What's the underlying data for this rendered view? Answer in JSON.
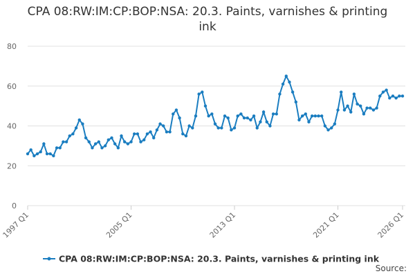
{
  "chart_data": {
    "type": "line",
    "title": "CPA 08:RW:IM:CP:BOP:NSA: 20.3. Paints, varnishes & printing ink",
    "source": "Source:",
    "categories": [
      "1997 Q1",
      null,
      null,
      null,
      null,
      null,
      null,
      null,
      null,
      null,
      null,
      null,
      null,
      null,
      null,
      null,
      null,
      null,
      null,
      null,
      null,
      null,
      null,
      null,
      null,
      null,
      null,
      null,
      null,
      null,
      null,
      null,
      "2005 Q1",
      null,
      null,
      null,
      null,
      null,
      null,
      null,
      null,
      null,
      null,
      null,
      null,
      null,
      null,
      null,
      null,
      null,
      null,
      null,
      null,
      null,
      null,
      null,
      null,
      null,
      null,
      null,
      null,
      null,
      null,
      null,
      "2013 Q1",
      null,
      null,
      null,
      null,
      null,
      null,
      null,
      null,
      null,
      null,
      null,
      null,
      null,
      null,
      null,
      null,
      null,
      null,
      null,
      null,
      null,
      null,
      null,
      null,
      null,
      null,
      null,
      null,
      null,
      null,
      null,
      "2021 Q1",
      null,
      null,
      null,
      null,
      null,
      null,
      null,
      null,
      null,
      null,
      null,
      null,
      null,
      null,
      null,
      null,
      null,
      null,
      null,
      "2026 Q1"
    ],
    "series": [
      {
        "name": "CPA 08:RW:IM:CP:BOP:NSA: 20.3. Paints, varnishes & printing ink",
        "color": "#1a7dc0",
        "values": [
          26,
          28,
          25,
          26,
          27,
          31,
          26,
          26,
          25,
          29,
          29,
          32,
          32,
          35,
          36,
          39,
          43,
          41,
          34,
          32,
          29,
          31,
          32,
          29,
          30,
          33,
          34,
          31,
          29,
          35,
          32,
          31,
          32,
          36,
          36,
          32,
          33,
          36,
          37,
          34,
          38,
          41,
          40,
          37,
          37,
          46,
          48,
          44,
          36,
          35,
          40,
          39,
          45,
          56,
          57,
          50,
          45,
          46,
          41,
          39,
          39,
          45,
          44,
          38,
          39,
          45,
          46,
          44,
          44,
          43,
          45,
          39,
          42,
          47,
          42,
          40,
          46,
          46,
          56,
          61,
          65,
          62,
          57,
          52,
          43,
          45,
          46,
          42,
          45,
          45,
          45,
          45,
          40,
          38,
          39,
          41,
          48,
          57,
          48,
          50,
          47,
          56,
          51,
          50,
          46,
          49,
          49,
          48,
          49,
          55,
          57,
          58,
          54,
          55,
          54,
          55,
          55
        ]
      }
    ],
    "ylim": [
      0,
      80
    ],
    "yticks": [
      0,
      20,
      40,
      60,
      80
    ],
    "grid": true
  }
}
